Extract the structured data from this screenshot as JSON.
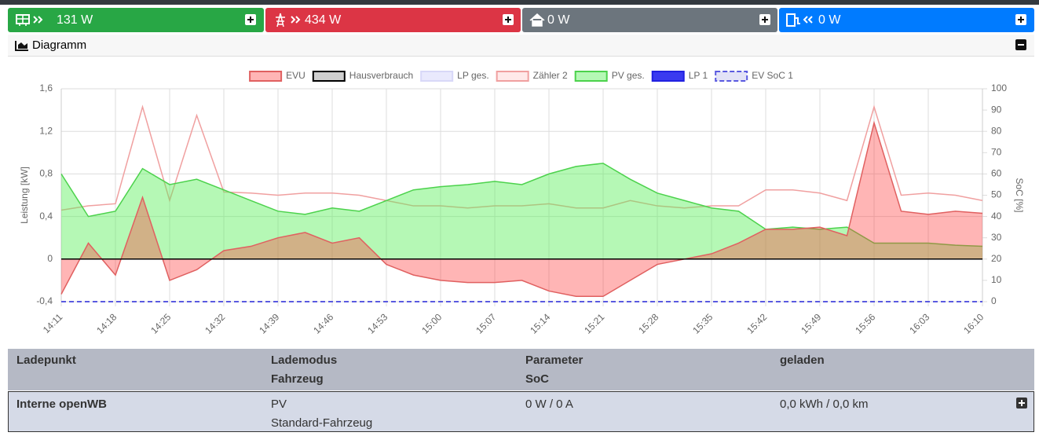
{
  "tiles": [
    {
      "value": "131 W"
    },
    {
      "value": "434 W"
    },
    {
      "value": "0 W"
    },
    {
      "value": "0 W"
    }
  ],
  "section": {
    "title": "Diagramm"
  },
  "chart_data": {
    "type": "area",
    "categories": [
      "14:11",
      null,
      "14:18",
      null,
      "14:25",
      null,
      "14:32",
      null,
      "14:39",
      null,
      "14:46",
      null,
      "14:53",
      null,
      "15:00",
      null,
      "15:07",
      null,
      "15:14",
      null,
      "15:21",
      null,
      "15:28",
      null,
      "15:35",
      null,
      "15:42",
      null,
      "15:49",
      null,
      "15:56",
      null,
      "16:03",
      null,
      "16:10"
    ],
    "series": [
      {
        "name": "EVU",
        "color": "#e06060",
        "fill": "rgba(255,60,60,0.38)",
        "area": true,
        "values": [
          -0.33,
          0.15,
          -0.15,
          0.58,
          -0.2,
          -0.1,
          0.08,
          0.12,
          0.2,
          0.25,
          0.15,
          0.2,
          -0.05,
          -0.15,
          -0.2,
          -0.22,
          -0.22,
          -0.2,
          -0.3,
          -0.35,
          -0.35,
          -0.2,
          -0.05,
          0,
          0.05,
          0.15,
          0.28,
          0.28,
          0.3,
          0.22,
          1.28,
          0.45,
          0.42,
          0.45,
          0.43
        ]
      },
      {
        "name": "Hausverbrauch",
        "color": "#000000",
        "fill": "rgba(160,160,160,0.5)",
        "area": false,
        "values": [
          0,
          0,
          0,
          0,
          0,
          0,
          0,
          0,
          0,
          0,
          0,
          0,
          0,
          0,
          0,
          0,
          0,
          0,
          0,
          0,
          0,
          0,
          0,
          0,
          0,
          0,
          0,
          0,
          0,
          0,
          0,
          0,
          0,
          0,
          0
        ]
      },
      {
        "name": "LP ges.",
        "color": "#d8d8f8",
        "fill": "rgba(200,200,250,0.4)",
        "area": false,
        "values": [
          0,
          0,
          0,
          0,
          0,
          0,
          0,
          0,
          0,
          0,
          0,
          0,
          0,
          0,
          0,
          0,
          0,
          0,
          0,
          0,
          0,
          0,
          0,
          0,
          0,
          0,
          0,
          0,
          0,
          0,
          0,
          0,
          0,
          0,
          0
        ]
      },
      {
        "name": "Zähler 2",
        "color": "#f0a0a0",
        "fill": "rgba(255,200,200,0.4)",
        "area": false,
        "values": [
          0.46,
          0.5,
          0.52,
          1.43,
          0.55,
          1.35,
          0.63,
          0.62,
          0.6,
          0.62,
          0.62,
          0.6,
          0.55,
          0.5,
          0.5,
          0.48,
          0.5,
          0.5,
          0.52,
          0.48,
          0.48,
          0.55,
          0.5,
          0.48,
          0.5,
          0.5,
          0.65,
          0.65,
          0.62,
          0.55,
          1.43,
          0.6,
          0.62,
          0.6,
          0.55
        ]
      },
      {
        "name": "PV ges.",
        "color": "#4cd24c",
        "fill": "rgba(90,240,90,0.45)",
        "area": true,
        "values": [
          0.8,
          0.4,
          0.45,
          0.85,
          0.7,
          0.75,
          0.65,
          0.55,
          0.45,
          0.42,
          0.48,
          0.45,
          0.55,
          0.65,
          0.68,
          0.7,
          0.73,
          0.7,
          0.8,
          0.87,
          0.9,
          0.75,
          0.62,
          0.55,
          0.48,
          0.45,
          0.28,
          0.3,
          0.28,
          0.3,
          0.15,
          0.15,
          0.15,
          0.13,
          0.12
        ]
      },
      {
        "name": "LP 1",
        "color": "#2020e0",
        "fill": "#3a3af0",
        "area": false,
        "values": [
          0,
          0,
          0,
          0,
          0,
          0,
          0,
          0,
          0,
          0,
          0,
          0,
          0,
          0,
          0,
          0,
          0,
          0,
          0,
          0,
          0,
          0,
          0,
          0,
          0,
          0,
          0,
          0,
          0,
          0,
          0,
          0,
          0,
          0,
          0
        ]
      },
      {
        "name": "EV SoC 1",
        "color": "#5a5ae0",
        "fill": "rgba(200,200,240,0.5)",
        "area": false,
        "dashed": true,
        "axis": "y2",
        "values": [
          0,
          0,
          0,
          0,
          0,
          0,
          0,
          0,
          0,
          0,
          0,
          0,
          0,
          0,
          0,
          0,
          0,
          0,
          0,
          0,
          0,
          0,
          0,
          0,
          0,
          0,
          0,
          0,
          0,
          0,
          0,
          0,
          0,
          0,
          0
        ]
      }
    ],
    "y_label": "Leistung [kW]",
    "y2_label": "SoC [%]",
    "ylim": [
      -0.4,
      1.6
    ],
    "yticks": [
      {
        "value": -0.4,
        "label": "-0,4"
      },
      0,
      {
        "value": 0.4,
        "label": "0,4"
      },
      {
        "value": 0.8,
        "label": "0,8"
      },
      {
        "value": 1.2,
        "label": "1,2"
      },
      {
        "value": 1.6,
        "label": "1,6"
      }
    ],
    "y2lim": [
      0,
      100
    ],
    "y2ticks": [
      0,
      10,
      20,
      30,
      40,
      50,
      60,
      70,
      80,
      90,
      100
    ],
    "grid": true
  },
  "table": {
    "header": [
      "Ladepunkt",
      [
        "Lademodus",
        "Fahrzeug"
      ],
      [
        "Parameter",
        "SoC"
      ],
      "geladen"
    ],
    "rows": [
      [
        "Interne openWB",
        [
          "PV",
          "Standard-Fahrzeug"
        ],
        "0 W / 0 A",
        "0,0 kWh / 0,0 km"
      ]
    ]
  }
}
